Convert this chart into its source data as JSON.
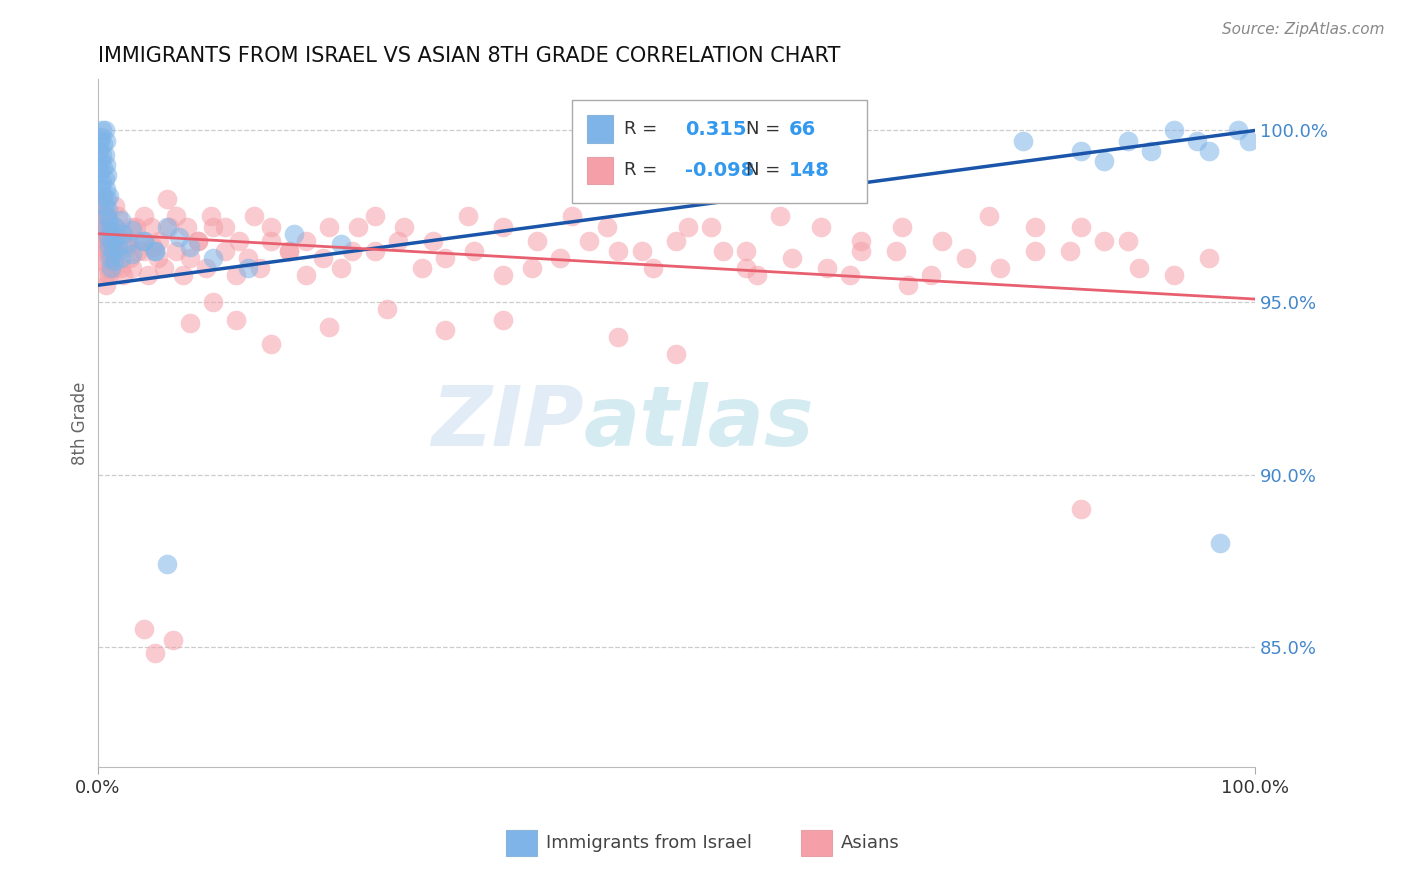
{
  "title": "IMMIGRANTS FROM ISRAEL VS ASIAN 8TH GRADE CORRELATION CHART",
  "source": "Source: ZipAtlas.com",
  "ylabel": "8th Grade",
  "legend_label1": "Immigrants from Israel",
  "legend_label2": "Asians",
  "r1": 0.315,
  "n1": 66,
  "r2": -0.098,
  "n2": 148,
  "yaxis_labels": [
    "85.0%",
    "90.0%",
    "95.0%",
    "100.0%"
  ],
  "yaxis_values": [
    0.85,
    0.9,
    0.95,
    1.0
  ],
  "ylim_min": 0.815,
  "ylim_max": 1.015,
  "xlim_min": 0.0,
  "xlim_max": 1.0,
  "color_blue": "#7EB4E8",
  "color_pink": "#F5A0A8",
  "color_blue_line": "#1A55AA",
  "color_pink_line": "#E86070",
  "background": "#FFFFFF",
  "watermark_zip": "ZIP",
  "watermark_atlas": "atlas",
  "blue_dots_x": [
    0.001,
    0.002,
    0.002,
    0.003,
    0.003,
    0.003,
    0.004,
    0.004,
    0.004,
    0.005,
    0.005,
    0.005,
    0.006,
    0.006,
    0.006,
    0.006,
    0.007,
    0.007,
    0.007,
    0.007,
    0.008,
    0.008,
    0.008,
    0.009,
    0.009,
    0.01,
    0.01,
    0.01,
    0.011,
    0.011,
    0.012,
    0.012,
    0.013,
    0.014,
    0.015,
    0.016,
    0.018,
    0.02,
    0.022,
    0.025,
    0.03,
    0.04,
    0.05,
    0.06,
    0.07,
    0.08,
    0.1,
    0.13,
    0.17,
    0.21,
    0.02,
    0.03,
    0.04,
    0.05,
    0.8,
    0.85,
    0.87,
    0.89,
    0.91,
    0.93,
    0.95,
    0.96,
    0.97,
    0.985,
    0.995,
    0.06
  ],
  "blue_dots_y": [
    0.994,
    0.988,
    0.997,
    0.983,
    0.991,
    0.998,
    0.985,
    0.993,
    1.0,
    0.981,
    0.989,
    0.996,
    0.978,
    0.986,
    0.993,
    1.0,
    0.975,
    0.983,
    0.99,
    0.997,
    0.972,
    0.98,
    0.987,
    0.969,
    0.977,
    0.966,
    0.974,
    0.981,
    0.963,
    0.971,
    0.96,
    0.968,
    0.965,
    0.962,
    0.972,
    0.969,
    0.966,
    0.963,
    0.97,
    0.967,
    0.964,
    0.968,
    0.965,
    0.972,
    0.969,
    0.966,
    0.963,
    0.96,
    0.97,
    0.967,
    0.974,
    0.971,
    0.968,
    0.965,
    0.997,
    0.994,
    0.991,
    0.997,
    0.994,
    1.0,
    0.997,
    0.994,
    0.88,
    1.0,
    0.997,
    0.874
  ],
  "pink_dots_x": [
    0.001,
    0.002,
    0.002,
    0.003,
    0.003,
    0.004,
    0.004,
    0.005,
    0.005,
    0.006,
    0.006,
    0.007,
    0.007,
    0.008,
    0.008,
    0.009,
    0.009,
    0.01,
    0.01,
    0.011,
    0.012,
    0.013,
    0.014,
    0.015,
    0.016,
    0.018,
    0.02,
    0.022,
    0.025,
    0.028,
    0.03,
    0.033,
    0.036,
    0.04,
    0.044,
    0.048,
    0.052,
    0.057,
    0.062,
    0.068,
    0.074,
    0.08,
    0.087,
    0.094,
    0.1,
    0.11,
    0.12,
    0.13,
    0.14,
    0.15,
    0.165,
    0.18,
    0.195,
    0.21,
    0.225,
    0.24,
    0.26,
    0.28,
    0.3,
    0.325,
    0.35,
    0.375,
    0.4,
    0.425,
    0.45,
    0.48,
    0.51,
    0.54,
    0.57,
    0.6,
    0.63,
    0.66,
    0.69,
    0.72,
    0.75,
    0.78,
    0.81,
    0.84,
    0.87,
    0.9,
    0.93,
    0.96,
    0.003,
    0.005,
    0.007,
    0.009,
    0.011,
    0.013,
    0.015,
    0.018,
    0.021,
    0.025,
    0.03,
    0.035,
    0.04,
    0.046,
    0.053,
    0.06,
    0.068,
    0.077,
    0.087,
    0.098,
    0.11,
    0.122,
    0.135,
    0.15,
    0.165,
    0.18,
    0.2,
    0.22,
    0.24,
    0.265,
    0.29,
    0.32,
    0.35,
    0.38,
    0.41,
    0.44,
    0.47,
    0.5,
    0.53,
    0.56,
    0.59,
    0.625,
    0.66,
    0.695,
    0.73,
    0.77,
    0.81,
    0.85,
    0.89,
    0.85,
    0.5,
    0.45,
    0.35,
    0.3,
    0.25,
    0.2,
    0.15,
    0.12,
    0.1,
    0.08,
    0.065,
    0.05,
    0.04,
    0.56,
    0.65,
    0.7
  ],
  "pink_dots_y": [
    0.978,
    0.972,
    0.98,
    0.968,
    0.975,
    0.965,
    0.972,
    0.962,
    0.969,
    0.958,
    0.966,
    0.955,
    0.963,
    0.975,
    0.968,
    0.96,
    0.972,
    0.965,
    0.958,
    0.969,
    0.966,
    0.963,
    0.96,
    0.972,
    0.968,
    0.965,
    0.96,
    0.958,
    0.966,
    0.963,
    0.96,
    0.972,
    0.968,
    0.965,
    0.958,
    0.966,
    0.963,
    0.96,
    0.972,
    0.965,
    0.958,
    0.963,
    0.968,
    0.96,
    0.972,
    0.965,
    0.958,
    0.963,
    0.96,
    0.968,
    0.965,
    0.958,
    0.963,
    0.96,
    0.972,
    0.965,
    0.968,
    0.96,
    0.963,
    0.965,
    0.958,
    0.96,
    0.963,
    0.968,
    0.965,
    0.96,
    0.972,
    0.965,
    0.958,
    0.963,
    0.96,
    0.968,
    0.965,
    0.958,
    0.963,
    0.96,
    0.972,
    0.965,
    0.968,
    0.96,
    0.958,
    0.963,
    0.972,
    0.98,
    0.975,
    0.968,
    0.972,
    0.965,
    0.978,
    0.975,
    0.97,
    0.968,
    0.972,
    0.965,
    0.975,
    0.972,
    0.968,
    0.98,
    0.975,
    0.972,
    0.968,
    0.975,
    0.972,
    0.968,
    0.975,
    0.972,
    0.965,
    0.968,
    0.972,
    0.965,
    0.975,
    0.972,
    0.968,
    0.975,
    0.972,
    0.968,
    0.975,
    0.972,
    0.965,
    0.968,
    0.972,
    0.965,
    0.975,
    0.972,
    0.965,
    0.972,
    0.968,
    0.975,
    0.965,
    0.972,
    0.968,
    0.89,
    0.935,
    0.94,
    0.945,
    0.942,
    0.948,
    0.943,
    0.938,
    0.945,
    0.95,
    0.944,
    0.852,
    0.848,
    0.855,
    0.96,
    0.958,
    0.955
  ]
}
